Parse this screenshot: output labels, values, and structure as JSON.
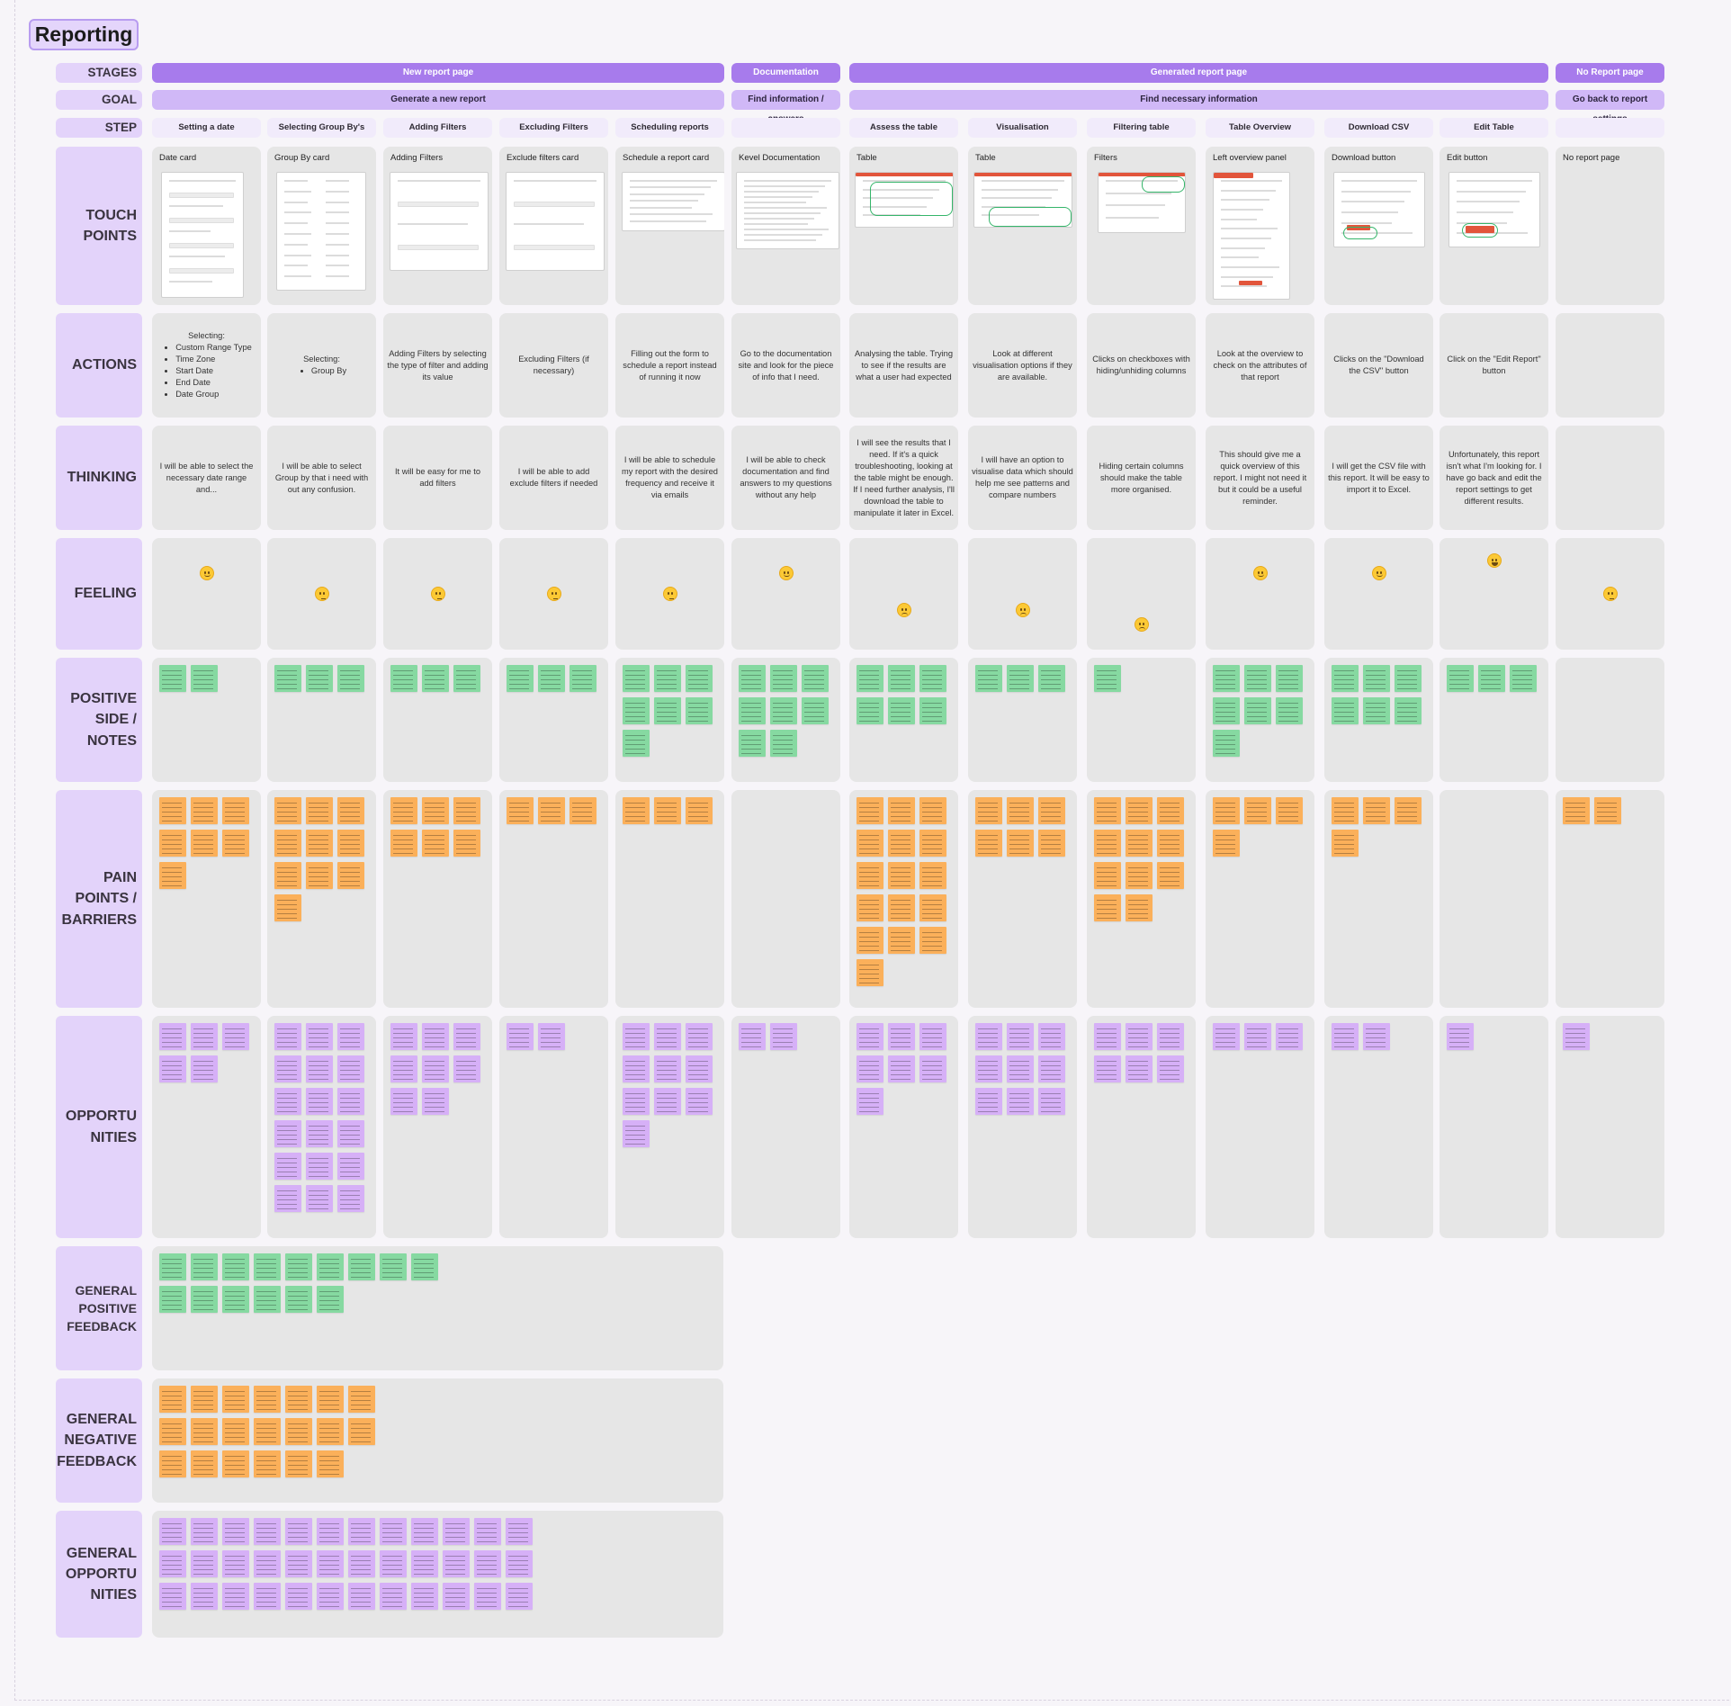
{
  "title": "Reporting",
  "row_labels": [
    {
      "key": "stages",
      "label": "STAGES"
    },
    {
      "key": "goal",
      "label": "GOAL"
    },
    {
      "key": "step",
      "label": "STEP"
    },
    {
      "key": "touch",
      "label": "TOUCH POINTS"
    },
    {
      "key": "actions",
      "label": "ACTIONS"
    },
    {
      "key": "thinking",
      "label": "THINKING"
    },
    {
      "key": "feeling",
      "label": "FEELING"
    },
    {
      "key": "positive",
      "label": "POSITIVE SIDE / NOTES"
    },
    {
      "key": "pain",
      "label": "PAIN POINTS / BARRIERS"
    },
    {
      "key": "opps",
      "label": "OPPORTU NITIES"
    },
    {
      "key": "gen_pos",
      "label": "GENERAL POSITIVE FEEDBACK"
    },
    {
      "key": "gen_neg",
      "label": "GENERAL NEGATIVE FEEDBACK"
    },
    {
      "key": "gen_opps",
      "label": "GENERAL OPPORTU NITIES"
    }
  ],
  "stages": [
    {
      "label": "New report page",
      "from": 0,
      "to": 4
    },
    {
      "label": "Documentation",
      "from": 5,
      "to": 5
    },
    {
      "label": "Generated report page",
      "from": 6,
      "to": 11
    },
    {
      "label": "No Report page",
      "from": 12,
      "to": 12
    }
  ],
  "goals": [
    {
      "label": "Generate a new report",
      "from": 0,
      "to": 4
    },
    {
      "label": "Find information / answers",
      "from": 5,
      "to": 5
    },
    {
      "label": "Find necessary information",
      "from": 6,
      "to": 11
    },
    {
      "label": "Go back to report settings",
      "from": 12,
      "to": 12
    }
  ],
  "columns": [
    {
      "step": "Setting a date",
      "touchpoint": "Date card",
      "action_lead": "Selecting:",
      "action_bullets": [
        "Custom Range Type",
        "Time Zone",
        "Start Date",
        "End Date",
        "Date Group"
      ],
      "action": "",
      "thinking": "I will be able to select the necessary date range and...",
      "feeling": "smile",
      "feeling_level": 0.25,
      "positive": 2,
      "pain": 7,
      "opps": 5
    },
    {
      "step": "Selecting Group By's",
      "touchpoint": "Group By card",
      "action_lead": "Selecting:",
      "action_bullets": [
        "Group By"
      ],
      "action": "",
      "thinking": "I will be able to select Group by that i need with out any confusion.",
      "feeling": "think",
      "feeling_level": 0.5,
      "positive": 3,
      "pain": 10,
      "opps": 19
    },
    {
      "step": "Adding Filters",
      "touchpoint": "Adding Filters",
      "action_lead": "",
      "action_bullets": [],
      "action": "Adding Filters by selecting the type of filter and adding its value",
      "thinking": "It will be easy for me to add filters",
      "feeling": "think",
      "feeling_level": 0.5,
      "positive": 3,
      "pain": 6,
      "opps": 8
    },
    {
      "step": "Excluding Filters",
      "touchpoint": "Exclude filters card",
      "action_lead": "",
      "action_bullets": [],
      "action": "Excluding Filters (if necessary)",
      "thinking": "I will be able to add exclude filters if needed",
      "feeling": "think",
      "feeling_level": 0.5,
      "positive": 3,
      "pain": 3,
      "opps": 2
    },
    {
      "step": "Scheduling reports",
      "touchpoint": "Schedule a report card",
      "action_lead": "",
      "action_bullets": [],
      "action": "Filling out the form to schedule a report instead of running it now",
      "thinking": "I will be able to schedule my report with the desired frequency and receive it via emails",
      "feeling": "think",
      "feeling_level": 0.5,
      "positive": 7,
      "pain": 3,
      "opps": 10
    },
    {
      "step": "",
      "touchpoint": "Kevel Documentation",
      "action_lead": "",
      "action_bullets": [],
      "action": "Go to the documentation site and look for the piece of info that I need.",
      "thinking": "I will be able to check documentation and find answers to my questions without any help",
      "feeling": "smile",
      "feeling_level": 0.25,
      "positive": 8,
      "pain": 0,
      "opps": 2
    },
    {
      "step": "Assess the table",
      "touchpoint": "Table",
      "action_lead": "",
      "action_bullets": [],
      "action": "Analysing the table. Trying to see if the results are what a user had expected",
      "thinking": "I will see the results that I need. If it's a quick troubleshooting, looking at the table might be enough. If I need further analysis, I'll download the table to manipulate it later in Excel.",
      "feeling": "sad",
      "feeling_level": 0.7,
      "positive": 6,
      "pain": 16,
      "opps": 7
    },
    {
      "step": "Visualisation",
      "touchpoint": "Table",
      "action_lead": "",
      "action_bullets": [],
      "action": "Look at different visualisation options if they are available.",
      "thinking": "I will have an option to visualise data which should help me see patterns and compare numbers",
      "feeling": "sad",
      "feeling_level": 0.7,
      "positive": 3,
      "pain": 6,
      "opps": 9
    },
    {
      "step": "Filtering table",
      "touchpoint": "Filters",
      "action_lead": "",
      "action_bullets": [],
      "action": "Clicks on checkboxes with hiding/unhiding columns",
      "thinking": "Hiding certain columns should make the table more organised.",
      "feeling": "sad",
      "feeling_level": 0.87,
      "positive": 1,
      "pain": 11,
      "opps": 6
    },
    {
      "step": "Table Overview",
      "touchpoint": "Left overview panel",
      "action_lead": "",
      "action_bullets": [],
      "action": "Look at the overview to check on the attributes of that report",
      "thinking": "This should give me a quick overview of this report. I might not need it but it could be a useful reminder.",
      "feeling": "smile",
      "feeling_level": 0.25,
      "positive": 7,
      "pain": 4,
      "opps": 3
    },
    {
      "step": "Download CSV",
      "touchpoint": "Download button",
      "action_lead": "",
      "action_bullets": [],
      "action": "Clicks on the \"Download the CSV\" button",
      "thinking": "I will get the CSV file with this report. It will be easy to import it to Excel.",
      "feeling": "smile",
      "feeling_level": 0.25,
      "positive": 6,
      "pain": 4,
      "opps": 2
    },
    {
      "step": "Edit Table",
      "touchpoint": "Edit button",
      "action_lead": "",
      "action_bullets": [],
      "action": "Click on the \"Edit Report\" button",
      "thinking": "Unfortunately, this report isn't what I'm looking for. I have go back and edit the report settings to get different results.",
      "feeling": "happy",
      "feeling_level": 0.1,
      "positive": 3,
      "pain": 0,
      "opps": 1
    },
    {
      "step": "",
      "touchpoint": "No report page",
      "action_lead": "",
      "action_bullets": [],
      "action": "",
      "thinking": "",
      "feeling": "think",
      "feeling_level": 0.5,
      "positive": 0,
      "pain": 2,
      "opps": 1
    }
  ],
  "general": {
    "positive_notes": 15,
    "negative_notes": 20,
    "opportunity_notes": 42
  },
  "colors": {
    "stage": "#a77bec",
    "goal": "#d0b8f7",
    "step": "#f1ebfb",
    "label": "#e3d3fa",
    "cell": "#e6e6e6",
    "note_positive": "#86d9a1",
    "note_pain": "#fbb05a",
    "note_opportunity": "#d6b0f7"
  },
  "icons": {
    "smile": "slightly-smiling-face-emoji",
    "think": "thinking-face-emoji",
    "sad": "pensive-face-emoji",
    "happy": "grinning-face-emoji"
  }
}
